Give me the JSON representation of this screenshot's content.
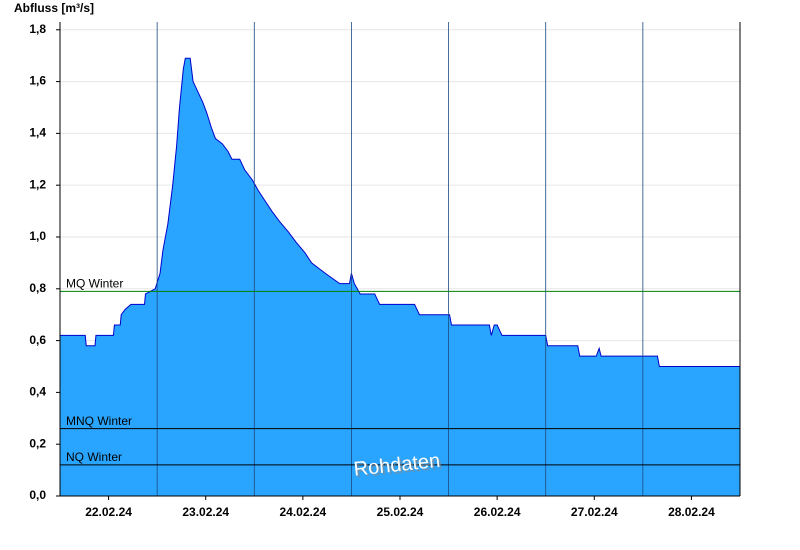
{
  "chart_data": {
    "type": "area",
    "y_label": "Abfluss [m³/s]",
    "watermark": "Rohdaten",
    "xlim": [
      0,
      7
    ],
    "xticks": [
      {
        "value": 0.5,
        "label": "22.02.24"
      },
      {
        "value": 1.5,
        "label": "23.02.24"
      },
      {
        "value": 2.5,
        "label": "24.02.24"
      },
      {
        "value": 3.5,
        "label": "25.02.24"
      },
      {
        "value": 4.5,
        "label": "26.02.24"
      },
      {
        "value": 5.5,
        "label": "27.02.24"
      },
      {
        "value": 6.5,
        "label": "28.02.24"
      }
    ],
    "ylim": [
      0,
      1.83
    ],
    "yticks": [
      {
        "value": 0,
        "label": "0,0"
      },
      {
        "value": 0.2,
        "label": "0,2"
      },
      {
        "value": 0.4,
        "label": "0,4"
      },
      {
        "value": 0.6,
        "label": "0,6"
      },
      {
        "value": 0.8,
        "label": "0,8"
      },
      {
        "value": 1.0,
        "label": "1,0"
      },
      {
        "value": 1.2,
        "label": "1,2"
      },
      {
        "value": 1.4,
        "label": "1,4"
      },
      {
        "value": 1.6,
        "label": "1,6"
      },
      {
        "value": 1.8,
        "label": "1,8"
      }
    ],
    "grid": true,
    "series": [
      {
        "color": "#2aa5ff",
        "line_color": "#0000cc",
        "x": [
          0,
          0.26,
          0.27,
          0.36,
          0.37,
          0.55,
          0.56,
          0.62,
          0.63,
          0.67,
          0.73,
          0.87,
          0.88,
          0.98,
          1.03,
          1.06,
          1.11,
          1.16,
          1.2,
          1.23,
          1.27,
          1.29,
          1.34,
          1.37,
          1.42,
          1.47,
          1.51,
          1.56,
          1.6,
          1.67,
          1.73,
          1.77,
          1.85,
          1.9,
          1.98,
          2.04,
          2.11,
          2.18,
          2.26,
          2.35,
          2.43,
          2.52,
          2.59,
          2.73,
          2.88,
          2.98,
          3.0,
          3.03,
          3.09,
          3.24,
          3.29,
          3.65,
          3.7,
          4.01,
          4.03,
          4.42,
          4.44,
          4.47,
          4.5,
          4.55,
          5.0,
          5.02,
          5.33,
          5.35,
          5.52,
          5.55,
          5.57,
          6.15,
          6.17,
          7
        ],
        "values": [
          0.62,
          0.62,
          0.58,
          0.58,
          0.62,
          0.62,
          0.66,
          0.66,
          0.7,
          0.72,
          0.74,
          0.74,
          0.78,
          0.8,
          0.86,
          0.95,
          1.05,
          1.2,
          1.35,
          1.5,
          1.65,
          1.69,
          1.69,
          1.6,
          1.56,
          1.52,
          1.48,
          1.42,
          1.38,
          1.36,
          1.33,
          1.3,
          1.3,
          1.26,
          1.22,
          1.18,
          1.14,
          1.1,
          1.06,
          1.02,
          0.98,
          0.94,
          0.9,
          0.86,
          0.82,
          0.82,
          0.86,
          0.82,
          0.78,
          0.78,
          0.74,
          0.74,
          0.7,
          0.7,
          0.66,
          0.66,
          0.62,
          0.66,
          0.66,
          0.62,
          0.62,
          0.58,
          0.58,
          0.54,
          0.54,
          0.57,
          0.54,
          0.54,
          0.5,
          0.5
        ]
      }
    ],
    "reference_lines": [
      {
        "label": "MQ Winter",
        "value": 0.79,
        "color": "#008000"
      },
      {
        "label": "MNQ Winter",
        "value": 0.26,
        "color": "#000000"
      },
      {
        "label": "NQ Winter",
        "value": 0.12,
        "color": "#000000"
      }
    ]
  }
}
